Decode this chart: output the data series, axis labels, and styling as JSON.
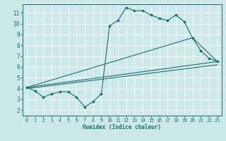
{
  "title": "",
  "xlabel": "Humidex (Indice chaleur)",
  "bg_color": "#cde8e8",
  "grid_color": "#ffffff",
  "line_color": "#1a6e6e",
  "xlim": [
    -0.5,
    23.5
  ],
  "ylim": [
    1.5,
    11.8
  ],
  "xticks": [
    0,
    1,
    2,
    3,
    4,
    5,
    6,
    7,
    8,
    9,
    10,
    11,
    12,
    13,
    14,
    15,
    16,
    17,
    18,
    19,
    20,
    21,
    22,
    23
  ],
  "yticks": [
    2,
    3,
    4,
    5,
    6,
    7,
    8,
    9,
    10,
    11
  ],
  "line1_x": [
    0,
    1,
    2,
    3,
    4,
    5,
    6,
    7,
    8,
    9,
    10,
    11,
    12,
    13,
    14,
    15,
    16,
    17,
    18,
    19,
    20,
    21,
    22,
    23
  ],
  "line1_y": [
    4.1,
    3.8,
    3.2,
    3.5,
    3.7,
    3.7,
    3.2,
    2.3,
    2.8,
    3.5,
    9.8,
    10.3,
    11.5,
    11.2,
    11.2,
    10.8,
    10.5,
    10.3,
    10.8,
    10.2,
    8.7,
    7.5,
    6.8,
    6.5
  ],
  "line2_x": [
    0,
    23
  ],
  "line2_y": [
    4.1,
    6.5
  ],
  "line3_x": [
    0,
    20,
    23
  ],
  "line3_y": [
    4.1,
    8.7,
    6.5
  ],
  "line4_x": [
    0,
    23
  ],
  "line4_y": [
    4.0,
    6.2
  ]
}
